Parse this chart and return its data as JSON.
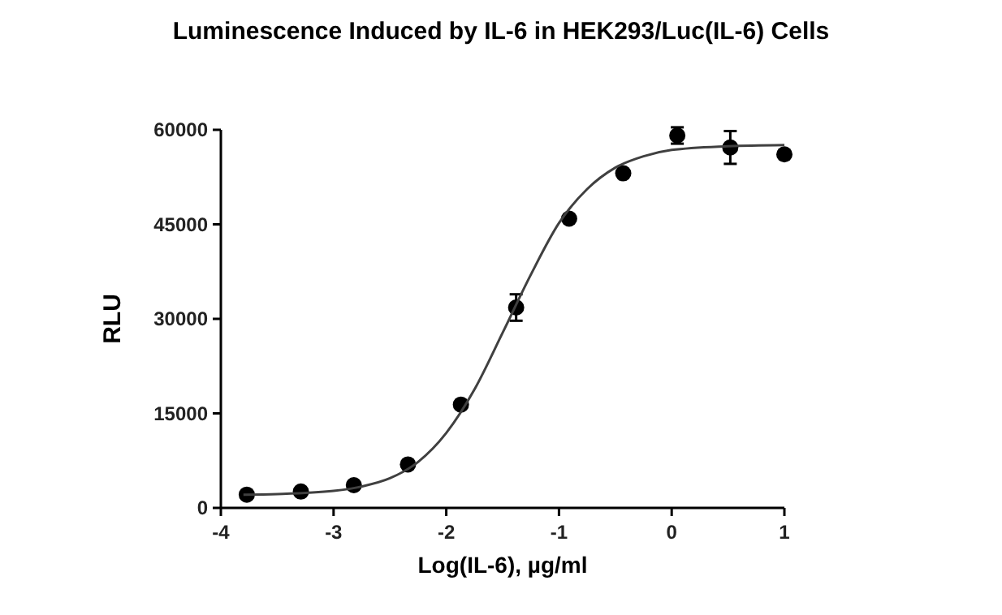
{
  "chart_data": {
    "type": "scatter",
    "title": "Luminescence Induced by IL-6 in HEK293/Luc(IL-6) Cells",
    "xlabel": "Log(IL-6), µg/ml",
    "ylabel": "RLU",
    "xlim": [
      -4,
      1
    ],
    "xticks": [
      -4,
      -3,
      -2,
      -1,
      0,
      1
    ],
    "ylim": [
      0,
      60000
    ],
    "yticks": [
      0,
      15000,
      30000,
      45000,
      60000
    ],
    "grid": false,
    "series": [
      {
        "color": "#000000",
        "marker": "circle",
        "x": [
          -3.77,
          -3.29,
          -2.82,
          -2.34,
          -1.87,
          -1.38,
          -0.91,
          -0.43,
          0.05,
          0.52,
          1.0
        ],
        "values": [
          2100,
          2600,
          3600,
          6900,
          16400,
          31800,
          45900,
          53100,
          59100,
          57200,
          56100
        ],
        "errors": [
          null,
          null,
          null,
          null,
          null,
          2100,
          null,
          null,
          1300,
          2600,
          null
        ]
      },
      {
        "type": "line",
        "color": "#404040",
        "marker": "none",
        "line_style": "solid",
        "x": [
          -3.8,
          -3.5,
          -3,
          -2.75,
          -2.5,
          -2.25,
          -2,
          -1.75,
          -1.5,
          -1.25,
          -1,
          -0.75,
          -0.5,
          -0.25,
          0,
          0.5,
          1
        ],
        "values": [
          2100,
          2200,
          2700,
          3400,
          4700,
          7300,
          11900,
          18800,
          27800,
          37000,
          45200,
          50600,
          54000,
          55800,
          56800,
          57400,
          57600
        ]
      }
    ]
  }
}
